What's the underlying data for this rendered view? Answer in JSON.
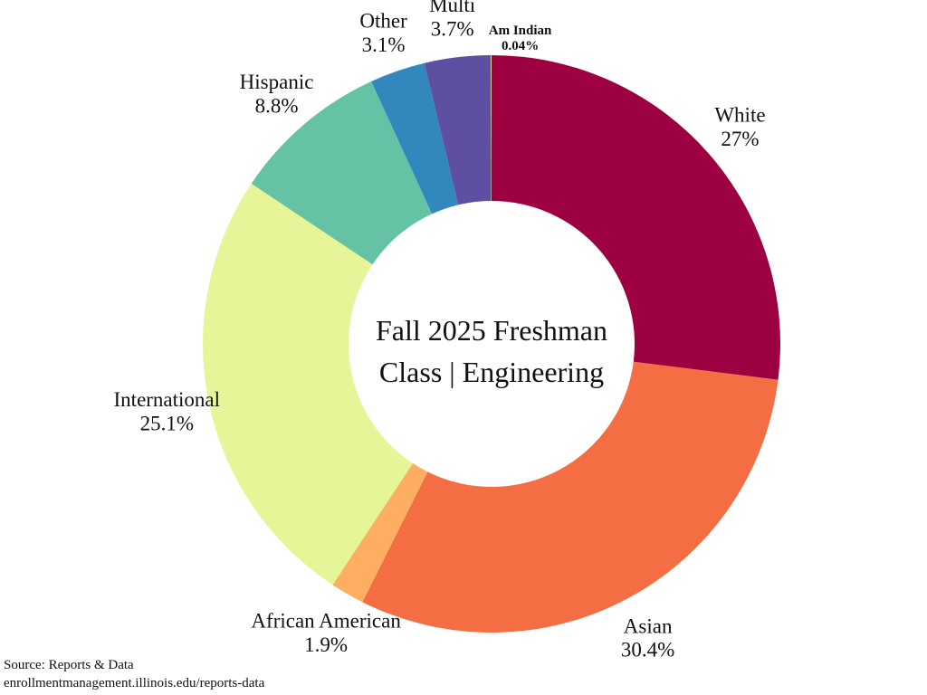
{
  "chart_data": {
    "type": "donut",
    "title": "Fall 2025 Freshman Class | Engineering",
    "categories": [
      "White",
      "Asian",
      "African American",
      "International",
      "Hispanic",
      "Other",
      "Multi",
      "Am Indian"
    ],
    "values": [
      27,
      30.4,
      1.9,
      25.1,
      8.8,
      3.1,
      3.7,
      0.04
    ],
    "value_labels": [
      "27%",
      "30.4%",
      "1.9%",
      "25.1%",
      "8.8%",
      "3.1%",
      "3.7%",
      "0.04%"
    ],
    "colors": [
      "#9e0142",
      "#f46d43",
      "#fdae61",
      "#e6f598",
      "#66c2a5",
      "#3288bd",
      "#5e4fa2",
      "#fee08b"
    ],
    "source": [
      "Source: Reports & Data",
      "enrollmentmanagement.illinois.edu/reports-data"
    ]
  }
}
